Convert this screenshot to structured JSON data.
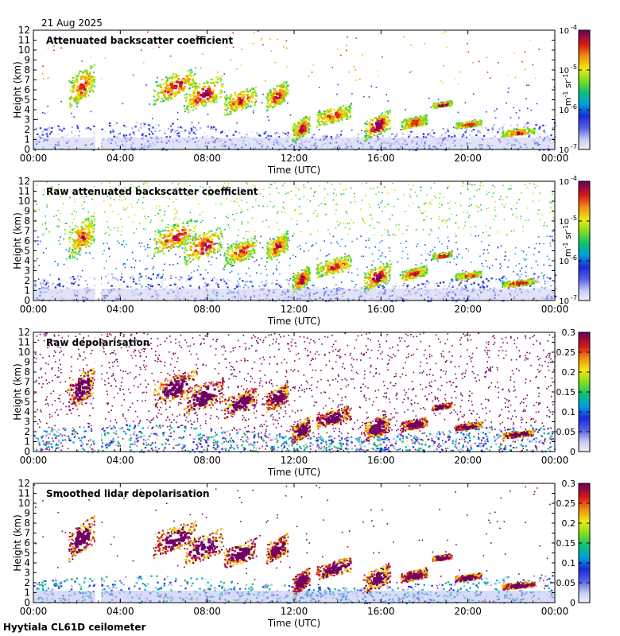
{
  "date": "21 Aug 2025",
  "footer": "Hyytiala CL61D ceilometer",
  "chart_data": [
    {
      "type": "heatmap",
      "title": "Attenuated backscatter coefficient",
      "xlabel": "Time (UTC)",
      "ylabel": "Height (km)",
      "x_ticks": [
        "00:00",
        "04:00",
        "08:00",
        "12:00",
        "16:00",
        "20:00",
        "00:00"
      ],
      "xlim_hours": [
        0,
        24
      ],
      "y_ticks": [
        0,
        1,
        2,
        3,
        4,
        5,
        6,
        7,
        8,
        9,
        10,
        11,
        12
      ],
      "ylim": [
        0,
        12
      ],
      "colorbar": {
        "scale": "log",
        "range": [
          1e-07,
          0.0001
        ],
        "ticks": [
          {
            "base": "10",
            "exp": "-7"
          },
          {
            "base": "10",
            "exp": "-6"
          },
          {
            "base": "10",
            "exp": "-5"
          },
          {
            "base": "10",
            "exp": "-4"
          }
        ],
        "unit_main": "m",
        "unit_sup1": "-1",
        "unit_mid": " sr",
        "unit_sup2": "-1"
      }
    },
    {
      "type": "heatmap",
      "title": "Raw attenuated backscatter coefficient",
      "xlabel": "Time (UTC)",
      "ylabel": "Height (km)",
      "x_ticks": [
        "00:00",
        "04:00",
        "08:00",
        "12:00",
        "16:00",
        "20:00",
        "00:00"
      ],
      "xlim_hours": [
        0,
        24
      ],
      "y_ticks": [
        0,
        1,
        2,
        3,
        4,
        5,
        6,
        7,
        8,
        9,
        10,
        11,
        12
      ],
      "ylim": [
        0,
        12
      ],
      "colorbar": {
        "scale": "log",
        "range": [
          1e-07,
          0.0001
        ],
        "ticks": [
          {
            "base": "10",
            "exp": "-7"
          },
          {
            "base": "10",
            "exp": "-6"
          },
          {
            "base": "10",
            "exp": "-5"
          },
          {
            "base": "10",
            "exp": "-4"
          }
        ],
        "unit_main": "m",
        "unit_sup1": "-1",
        "unit_mid": " sr",
        "unit_sup2": "-1"
      }
    },
    {
      "type": "heatmap",
      "title": "Raw depolarisation",
      "xlabel": "Time (UTC)",
      "ylabel": "Height (km)",
      "x_ticks": [
        "00:00",
        "04:00",
        "08:00",
        "12:00",
        "16:00",
        "20:00",
        "00:00"
      ],
      "xlim_hours": [
        0,
        24
      ],
      "y_ticks": [
        0,
        1,
        2,
        3,
        4,
        5,
        6,
        7,
        8,
        9,
        10,
        11,
        12
      ],
      "ylim": [
        0,
        12
      ],
      "colorbar": {
        "scale": "linear",
        "range": [
          0,
          0.3
        ],
        "ticks": [
          "0",
          "0.05",
          "0.1",
          "0.15",
          "0.2",
          "0.25",
          "0.3"
        ]
      }
    },
    {
      "type": "heatmap",
      "title": "Smoothed lidar depolarisation",
      "xlabel": "Time (UTC)",
      "ylabel": "Height (km)",
      "x_ticks": [
        "00:00",
        "04:00",
        "08:00",
        "12:00",
        "16:00",
        "20:00",
        "00:00"
      ],
      "xlim_hours": [
        0,
        24
      ],
      "y_ticks": [
        0,
        1,
        2,
        3,
        4,
        5,
        6,
        7,
        8,
        9,
        10,
        11,
        12
      ],
      "ylim": [
        0,
        12
      ],
      "colorbar": {
        "scale": "linear",
        "range": [
          0,
          0.3
        ],
        "ticks": [
          "0",
          "0.05",
          "0.1",
          "0.15",
          "0.2",
          "0.25",
          "0.3"
        ]
      }
    }
  ],
  "colors": {
    "background": "#ffffff",
    "axis": "#000000",
    "colormap": [
      "#e6e6f5",
      "#aab0ee",
      "#2a3ae0",
      "#00a8e0",
      "#10c070",
      "#70dd20",
      "#e0e010",
      "#f0a000",
      "#e02020",
      "#a00050",
      "#700060"
    ],
    "data_gap": "#ffffff"
  }
}
